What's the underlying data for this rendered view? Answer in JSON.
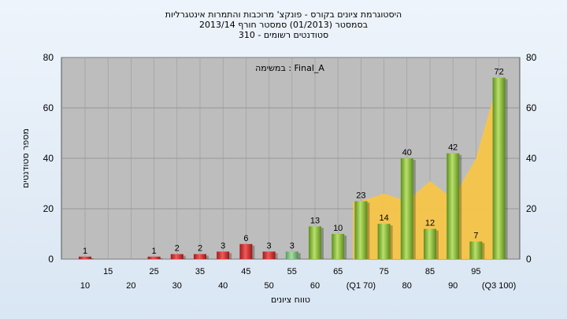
{
  "chart_data": {
    "type": "bar",
    "title_lines": [
      "היסטוגרמת ציונים בקורס - פונקצ' מרוכבות והתמרות אינטגרליות",
      "בסמסטר  (01/2013)  סמסטר חורף  2013/14",
      "סטודנטים רשומים - 310"
    ],
    "annotation": "במשימה : Final_A",
    "xlabel": "טווח ציונים",
    "ylabel": "מספר סטודנטים",
    "ylim": [
      0,
      80
    ],
    "yticks": [
      0,
      20,
      40,
      60,
      80
    ],
    "categories": [
      "10",
      "15",
      "20",
      "25",
      "30",
      "35",
      "40",
      "45",
      "50",
      "55",
      "60",
      "65",
      "(Q1 70)",
      "75",
      "80",
      "85",
      "90",
      "95",
      "(Q3 100)"
    ],
    "values": [
      1,
      0,
      0,
      1,
      2,
      2,
      3,
      6,
      3,
      3,
      13,
      10,
      23,
      14,
      40,
      12,
      42,
      7,
      72
    ],
    "value_labels": [
      "1",
      "",
      "",
      "1",
      "2",
      "2",
      "3",
      "6",
      "3",
      "3",
      "13",
      "10",
      "23",
      "14",
      "40",
      "12",
      "42",
      "7",
      "72"
    ],
    "bar_colors": {
      "below_pass": "#d93b3b",
      "near_pass": "#7fc47f",
      "pass": "#8cbf3f"
    },
    "area_series": {
      "color": "#f7c548",
      "values": [
        null,
        null,
        null,
        null,
        null,
        null,
        null,
        null,
        null,
        null,
        null,
        null,
        23,
        26,
        23,
        31,
        24,
        40,
        72
      ]
    },
    "grid": true,
    "plot_background": "#bdbdbd",
    "legend": "none"
  }
}
